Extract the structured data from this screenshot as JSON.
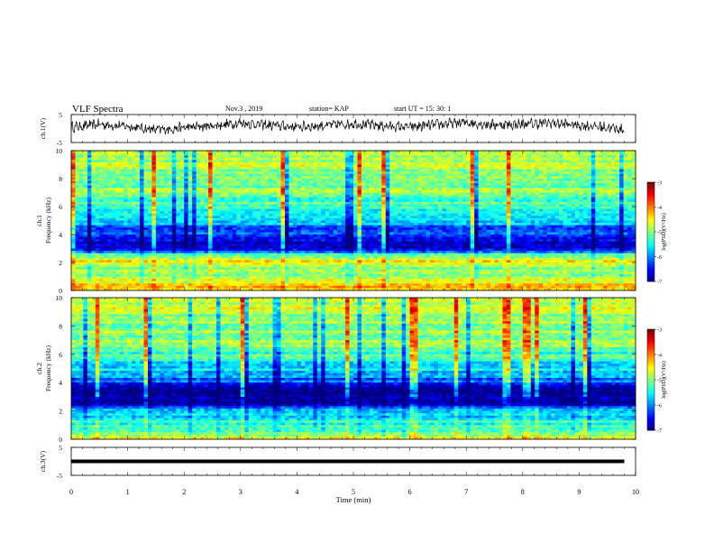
{
  "header": {
    "title": "VLF Spectra",
    "date": "Nov.3 , 2019",
    "station": "station= KAP",
    "start": "start UT = 15: 30: 1"
  },
  "colors": {
    "colormap": [
      "#00007f",
      "#0000ff",
      "#0080ff",
      "#00ffff",
      "#80ff80",
      "#ffff00",
      "#ff8000",
      "#ff0000",
      "#7f0000"
    ],
    "background_dominant": "#00e0a0",
    "line": "#000000"
  },
  "chart_data": [
    {
      "type": "line",
      "panel": "waveform-ch1",
      "ylabel": "ch.1(V)",
      "ylim": [
        -5,
        5
      ],
      "y_ticks": [
        "5",
        "-5"
      ],
      "xlim": [
        0,
        10
      ],
      "description_of_series": "noisy waveform oscillating roughly between -2 and 3 V",
      "series": [
        {
          "x": [
            0,
            0.5,
            1,
            1.5,
            2,
            2.5,
            3,
            3.5,
            4,
            4.5,
            5,
            5.5,
            6,
            6.5,
            7,
            7.5,
            8,
            8.5,
            9,
            9.5,
            9.8
          ],
          "y": [
            0.5,
            1.5,
            0.8,
            -0.5,
            0.3,
            1.0,
            2.0,
            1.2,
            0.6,
            1.1,
            1.8,
            1.0,
            0.5,
            1.4,
            2.2,
            1.3,
            1.6,
            2.0,
            1.2,
            0.4,
            -0.5
          ]
        }
      ]
    },
    {
      "type": "heatmap",
      "panel": "spectrogram-ch1",
      "title_label": "ch.1",
      "ylabel": "Frequency (kHz)",
      "ylim": [
        0,
        10
      ],
      "y_ticks": [
        "0",
        "2",
        "4",
        "6",
        "8",
        "10"
      ],
      "xlim": [
        0,
        9.8
      ],
      "colorbar": {
        "label": "log(PSD)(V²/Hz)",
        "range": [
          -7,
          -3
        ],
        "ticks": [
          "-3",
          "-4",
          "-5",
          "-6",
          "-7"
        ]
      },
      "freq_profile_khz": [
        0,
        0.5,
        1,
        1.5,
        2,
        2.5,
        3,
        3.5,
        4,
        4.5,
        5,
        5.5,
        6,
        7,
        8,
        9,
        10
      ],
      "level_profile": [
        -4.2,
        -4.5,
        -4.8,
        -5.0,
        -4.5,
        -5.2,
        -6.6,
        -6.8,
        -6.0,
        -6.2,
        -5.6,
        -5.4,
        -5.3,
        -5.0,
        -4.9,
        -4.8,
        -4.6
      ]
    },
    {
      "type": "heatmap",
      "panel": "spectrogram-ch2",
      "title_label": "ch.2",
      "ylabel": "Frequency (kHz)",
      "ylim": [
        0,
        10
      ],
      "y_ticks": [
        "0",
        "2",
        "4",
        "6",
        "8",
        "10"
      ],
      "xlim": [
        0,
        9.8
      ],
      "colorbar": {
        "label": "log(PSD)(V²/Hz)",
        "range": [
          -7,
          -3
        ],
        "ticks": [
          "-3",
          "-4",
          "-5",
          "-6",
          "-7"
        ]
      },
      "freq_profile_khz": [
        0,
        0.5,
        1,
        1.5,
        2,
        2.5,
        3,
        3.5,
        4,
        4.5,
        5,
        5.5,
        6,
        7,
        8,
        9,
        10
      ],
      "level_profile": [
        -4.6,
        -5.0,
        -5.3,
        -5.6,
        -5.8,
        -6.7,
        -6.9,
        -6.8,
        -6.2,
        -5.9,
        -5.6,
        -5.4,
        -5.2,
        -5.0,
        -4.9,
        -4.8,
        -4.7
      ]
    },
    {
      "type": "line",
      "panel": "waveform-ch3",
      "ylabel": "ch.3(V)",
      "ylim": [
        -5,
        5
      ],
      "y_ticks": [
        "5",
        "-5"
      ],
      "xlim": [
        0,
        10
      ],
      "series": [
        {
          "x": [
            0,
            9.8
          ],
          "y": [
            0,
            0
          ]
        }
      ]
    }
  ],
  "x_axis": {
    "label": "Time (min)",
    "range": [
      0,
      10
    ],
    "ticks": [
      "0",
      "1",
      "2",
      "3",
      "4",
      "5",
      "6",
      "7",
      "8",
      "9",
      "10"
    ]
  }
}
